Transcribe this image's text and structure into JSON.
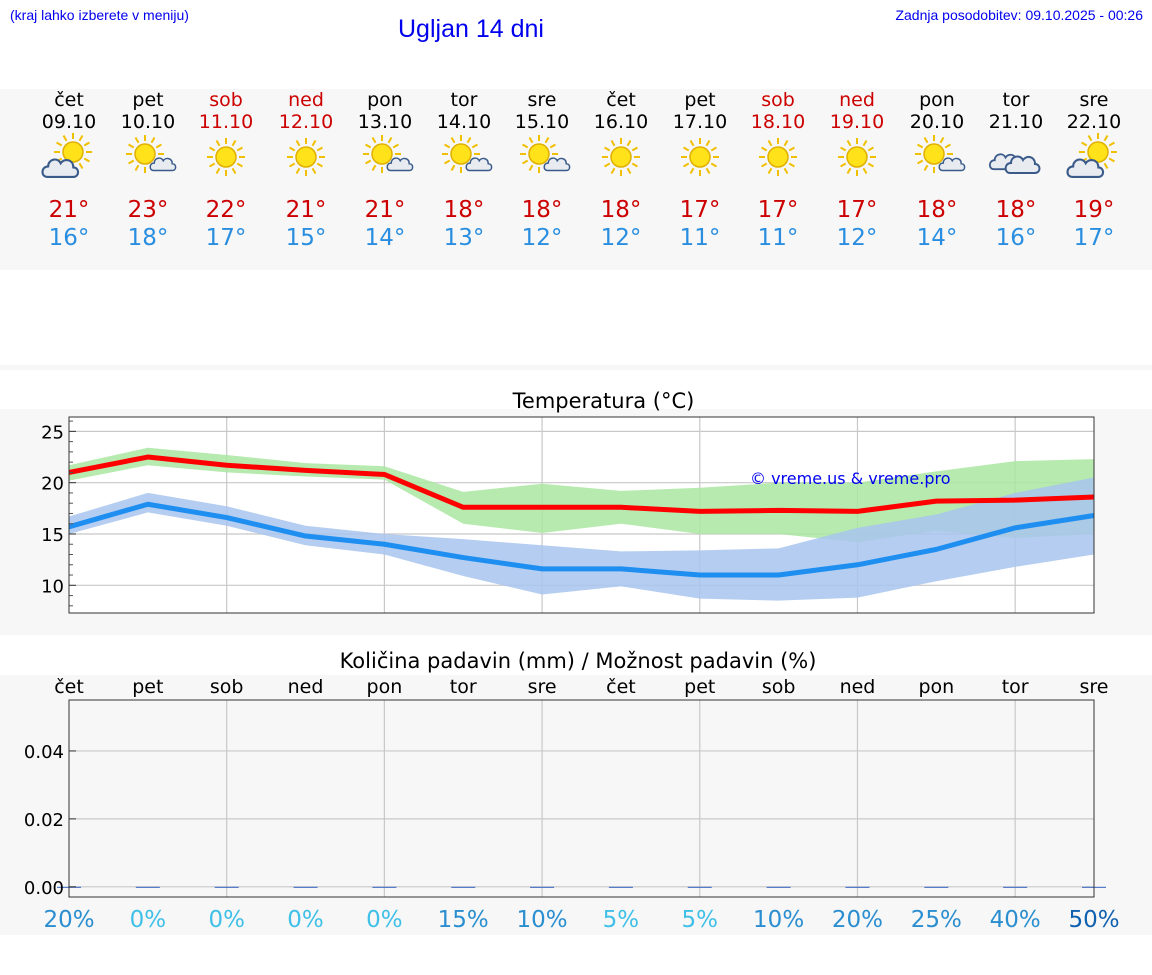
{
  "header": {
    "hint": "(kraj lahko izberete v meniju)",
    "title": "Ugljan 14 dni",
    "updated": "Zadnja posodobitev: 09.10.2025 - 00:26"
  },
  "days": [
    {
      "name": "čet",
      "date": "09.10",
      "weekend": false,
      "icon": "sun-cloud-icon",
      "max": "21°",
      "min": "16°"
    },
    {
      "name": "pet",
      "date": "10.10",
      "weekend": false,
      "icon": "sun-small-cloud-icon",
      "max": "23°",
      "min": "18°"
    },
    {
      "name": "sob",
      "date": "11.10",
      "weekend": true,
      "icon": "sun-icon",
      "max": "22°",
      "min": "17°"
    },
    {
      "name": "ned",
      "date": "12.10",
      "weekend": true,
      "icon": "sun-icon",
      "max": "21°",
      "min": "15°"
    },
    {
      "name": "pon",
      "date": "13.10",
      "weekend": false,
      "icon": "sun-small-cloud-icon",
      "max": "21°",
      "min": "14°"
    },
    {
      "name": "tor",
      "date": "14.10",
      "weekend": false,
      "icon": "sun-small-cloud-icon",
      "max": "18°",
      "min": "13°"
    },
    {
      "name": "sre",
      "date": "15.10",
      "weekend": false,
      "icon": "sun-small-cloud-icon",
      "max": "18°",
      "min": "12°"
    },
    {
      "name": "čet",
      "date": "16.10",
      "weekend": false,
      "icon": "sun-icon",
      "max": "18°",
      "min": "12°"
    },
    {
      "name": "pet",
      "date": "17.10",
      "weekend": false,
      "icon": "sun-icon",
      "max": "17°",
      "min": "11°"
    },
    {
      "name": "sob",
      "date": "18.10",
      "weekend": true,
      "icon": "sun-icon",
      "max": "17°",
      "min": "11°"
    },
    {
      "name": "ned",
      "date": "19.10",
      "weekend": true,
      "icon": "sun-icon",
      "max": "17°",
      "min": "12°"
    },
    {
      "name": "pon",
      "date": "20.10",
      "weekend": false,
      "icon": "sun-small-cloud-icon",
      "max": "18°",
      "min": "14°"
    },
    {
      "name": "tor",
      "date": "21.10",
      "weekend": false,
      "icon": "cloud-icon",
      "max": "18°",
      "min": "16°"
    },
    {
      "name": "sre",
      "date": "22.10",
      "weekend": false,
      "icon": "sun-cloud-icon",
      "max": "19°",
      "min": "17°"
    }
  ],
  "chart_data": [
    {
      "type": "line",
      "title": "Temperatura (°C)",
      "watermark": "© vreme.us & vreme.pro",
      "ylim": [
        7.3,
        26.4
      ],
      "yticks": [
        10,
        15,
        20,
        25
      ],
      "x": [
        0,
        1,
        2,
        3,
        4,
        5,
        6,
        7,
        8,
        9,
        10,
        11,
        12,
        13
      ],
      "series": [
        {
          "name": "max",
          "color": "#ff0000",
          "values": [
            21.0,
            22.5,
            21.7,
            21.2,
            20.8,
            17.6,
            17.6,
            17.6,
            17.2,
            17.3,
            17.2,
            18.2,
            18.3,
            18.6
          ],
          "band_low": [
            20.2,
            21.7,
            21.0,
            20.6,
            20.3,
            16.0,
            15.1,
            16.0,
            15.0,
            15.0,
            14.2,
            15.3,
            14.6,
            15.0
          ],
          "band_high": [
            21.7,
            23.4,
            22.7,
            21.9,
            21.6,
            19.1,
            19.9,
            19.2,
            19.5,
            20.0,
            20.0,
            21.1,
            22.1,
            22.3
          ],
          "band_color": "#aae6a0"
        },
        {
          "name": "min",
          "color": "#1e8ff0",
          "values": [
            15.7,
            17.9,
            16.6,
            14.8,
            14.0,
            12.7,
            11.6,
            11.6,
            11.0,
            11.0,
            12.0,
            13.5,
            15.6,
            16.8
          ],
          "band_low": [
            15.0,
            17.1,
            15.8,
            13.9,
            13.0,
            10.9,
            9.1,
            9.9,
            8.7,
            8.5,
            8.8,
            10.4,
            11.8,
            13.0
          ],
          "band_high": [
            16.7,
            19.0,
            17.7,
            15.8,
            15.0,
            14.5,
            13.9,
            13.3,
            13.4,
            13.6,
            15.6,
            16.9,
            19.0,
            20.5
          ],
          "band_color": "#a8c4ee"
        }
      ]
    },
    {
      "type": "bar",
      "title": "Količina padavin (mm) / Možnost padavin (%)",
      "categories": [
        "čet",
        "pet",
        "sob",
        "ned",
        "pon",
        "tor",
        "sre",
        "čet",
        "pet",
        "sob",
        "ned",
        "pon",
        "tor",
        "sre"
      ],
      "values": [
        0,
        0,
        0,
        0,
        0,
        0,
        0,
        0,
        0,
        0,
        0,
        0,
        0,
        0
      ],
      "ylim": [
        -0.003,
        0.055
      ],
      "yticks": [
        "0.00",
        "0.02",
        "0.04"
      ],
      "ytick_values": [
        0,
        0.02,
        0.04
      ],
      "chance": [
        "20%",
        "0%",
        "0%",
        "0%",
        "0%",
        "15%",
        "10%",
        "5%",
        "5%",
        "10%",
        "20%",
        "25%",
        "40%",
        "50%"
      ],
      "chance_values": [
        20,
        0,
        0,
        0,
        0,
        15,
        10,
        5,
        5,
        10,
        20,
        25,
        40,
        50
      ]
    }
  ]
}
